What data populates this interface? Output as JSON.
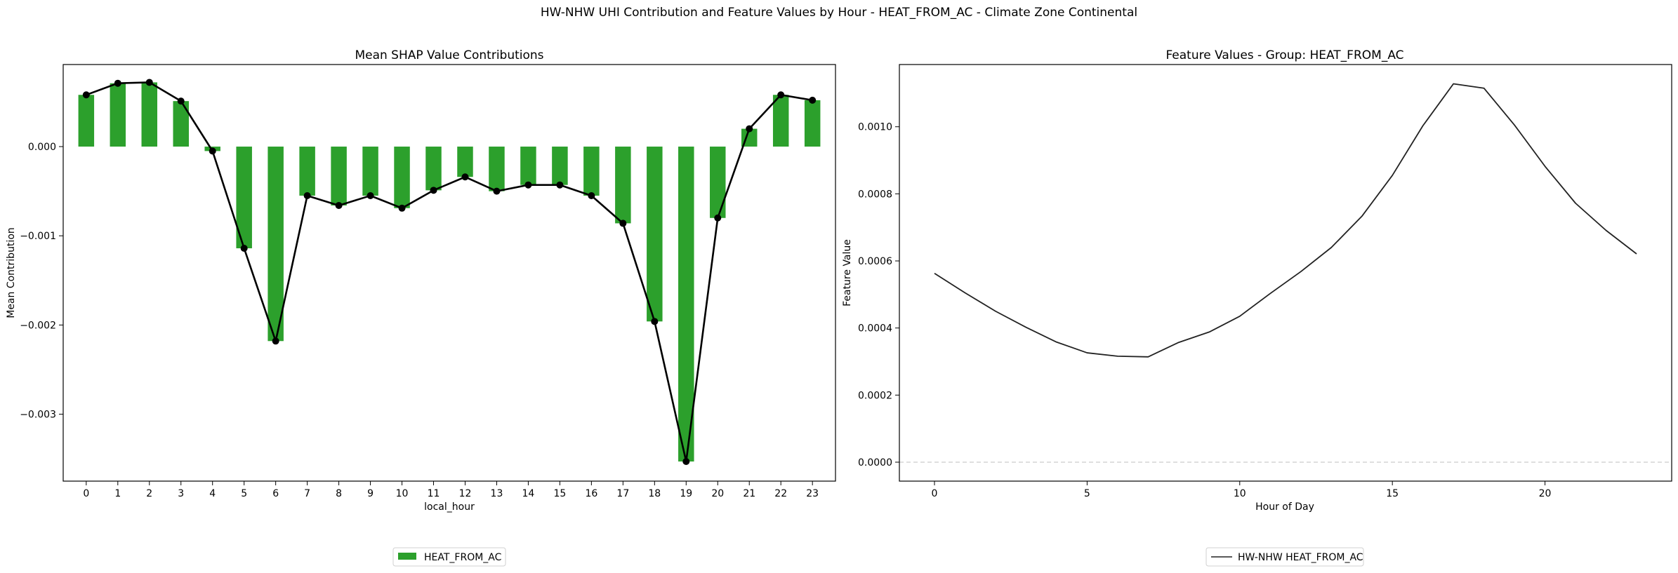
{
  "figure": {
    "suptitle": "HW-NHW UHI Contribution and Feature Values by Hour - HEAT_FROM_AC - Climate Zone Continental"
  },
  "chart_data": [
    {
      "type": "bar",
      "title": "Mean SHAP Value Contributions",
      "xlabel": "local_hour",
      "ylabel": "Mean Contribution",
      "categories": [
        "0",
        "1",
        "2",
        "3",
        "4",
        "5",
        "6",
        "7",
        "8",
        "9",
        "10",
        "11",
        "12",
        "13",
        "14",
        "15",
        "16",
        "17",
        "18",
        "19",
        "20",
        "21",
        "22",
        "23"
      ],
      "series": [
        {
          "name": "HEAT_FROM_AC",
          "values": [
            0.00058,
            0.00071,
            0.00072,
            0.00051,
            -5e-05,
            -0.00114,
            -0.00218,
            -0.00055,
            -0.00066,
            -0.00055,
            -0.00069,
            -0.00049,
            -0.00034,
            -0.0005,
            -0.00043,
            -0.00043,
            -0.00055,
            -0.00086,
            -0.00196,
            -0.00353,
            -0.0008,
            0.0002,
            0.00058,
            0.00052
          ]
        }
      ],
      "line_overlay": {
        "markers": true
      },
      "ylim": [
        -0.00375,
        0.00092
      ],
      "yticks": [
        0.0,
        -0.001,
        -0.002,
        -0.003
      ],
      "ytick_labels": [
        "0.000",
        "−0.001",
        "−0.002",
        "−0.003"
      ],
      "colors": {
        "bar": "#2ca02c",
        "line": "#000000"
      },
      "legend": {
        "placement": "below",
        "labels": [
          "HEAT_FROM_AC"
        ]
      }
    },
    {
      "type": "line",
      "title": "Feature Values - Group: HEAT_FROM_AC",
      "xlabel": "Hour of Day",
      "ylabel": "Feature Value",
      "x": [
        0,
        1,
        2,
        3,
        4,
        5,
        6,
        7,
        8,
        9,
        10,
        11,
        12,
        13,
        14,
        15,
        16,
        17,
        18,
        19,
        20,
        21,
        22,
        23
      ],
      "series": [
        {
          "name": "HW-NHW HEAT_FROM_AC",
          "values": [
            0.000563,
            0.000505,
            0.00045,
            0.000402,
            0.000358,
            0.000326,
            0.000316,
            0.000314,
            0.000357,
            0.000388,
            0.000435,
            0.000503,
            0.000568,
            0.00064,
            0.000733,
            0.000855,
            0.001003,
            0.001128,
            0.001115,
            0.001005,
            0.000882,
            0.000772,
            0.000691,
            0.000621
          ]
        }
      ],
      "xlim": [
        -1.15,
        24.15
      ],
      "ylim": [
        -5.65e-05,
        0.0011855
      ],
      "xticks": [
        0,
        5,
        10,
        15,
        20
      ],
      "xtick_labels": [
        "0",
        "5",
        "10",
        "15",
        "20"
      ],
      "yticks": [
        0.0,
        0.0002,
        0.0004,
        0.0006,
        0.0008,
        0.001
      ],
      "ytick_labels": [
        "0.0000",
        "0.0002",
        "0.0004",
        "0.0006",
        "0.0008",
        "0.0010"
      ],
      "reference_line": {
        "y": 0,
        "style": "dashed",
        "color": "#cccccc"
      },
      "colors": {
        "line": "#222222"
      },
      "legend": {
        "placement": "below",
        "labels": [
          "HW-NHW HEAT_FROM_AC"
        ]
      }
    }
  ]
}
